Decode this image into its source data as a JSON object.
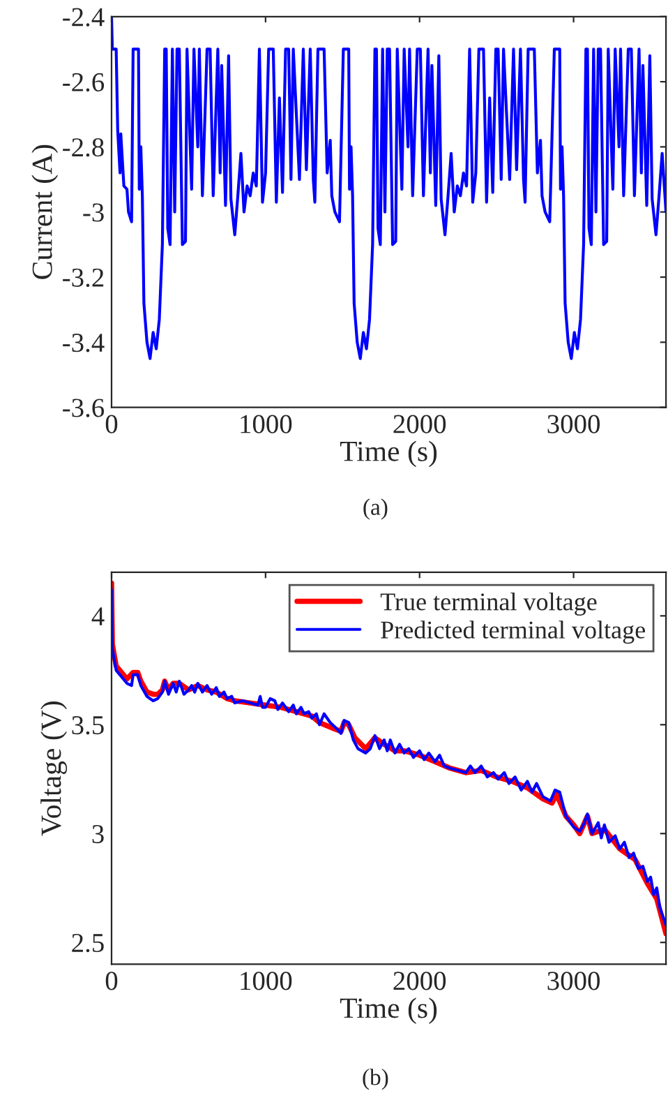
{
  "chart_data": [
    {
      "type": "line",
      "xlabel": "Time (s)",
      "ylabel": "Current (A)",
      "xlim": [
        0,
        3600
      ],
      "ylim": [
        -3.6,
        -2.4
      ],
      "xticks": [
        0,
        1000,
        2000,
        3000
      ],
      "yticks": [
        -3.6,
        -3.4,
        -3.2,
        -3,
        -2.8,
        -2.6,
        -2.4
      ],
      "grid": false,
      "legend": false,
      "annotations": [
        "(a)"
      ],
      "series": [
        {
          "color": "#0000ff",
          "x": [
            0,
            5,
            30,
            40,
            55,
            60,
            80,
            100,
            110,
            130,
            140,
            175,
            180,
            190,
            200,
            210,
            230,
            250,
            270,
            290,
            310,
            330,
            345,
            355,
            365,
            380,
            395,
            410,
            425,
            440,
            460,
            480,
            490,
            520,
            535,
            560,
            570,
            590,
            620,
            640,
            660,
            690,
            705,
            715,
            740,
            760,
            775,
            800,
            820,
            840,
            860,
            880,
            900,
            920,
            940,
            960,
            980,
            1000,
            1020,
            1050,
            1070,
            1090,
            1110,
            1130,
            1150,
            1165,
            1180,
            1200,
            1220,
            1245,
            1265,
            1290,
            1310,
            1320,
            1340,
            1380,
            1400,
            1420,
            1430,
            1450,
            1480,
            1505,
            1540,
            1545,
            1555,
            1565,
            1575,
            1595,
            1615,
            1635,
            1655,
            1675,
            1695,
            1710,
            1720,
            1730,
            1745,
            1760,
            1775,
            1790,
            1805,
            1825,
            1845,
            1855,
            1885,
            1900,
            1925,
            1935,
            1955,
            1985,
            2005,
            2025,
            2055,
            2070,
            2080,
            2105,
            2125,
            2140,
            2165,
            2185,
            2205,
            2225,
            2245,
            2265,
            2285,
            2305,
            2325,
            2345,
            2365,
            2385,
            2415,
            2435,
            2455,
            2475,
            2495,
            2510,
            2530,
            2545,
            2565,
            2585,
            2610,
            2630,
            2655,
            2675,
            2685,
            2705,
            2745,
            2765,
            2785,
            2795,
            2815,
            2845,
            2875,
            2910,
            2915,
            2925,
            2935,
            2945,
            2965,
            2985,
            3005,
            3025,
            3045,
            3065,
            3080,
            3090,
            3100,
            3115,
            3130,
            3145,
            3160,
            3175,
            3195,
            3215,
            3225,
            3255,
            3270,
            3295,
            3305,
            3325,
            3355,
            3375,
            3395,
            3425,
            3440,
            3450,
            3475,
            3495,
            3510,
            3535,
            3555,
            3575,
            3600
          ],
          "values": [
            -2.4,
            -2.5,
            -2.5,
            -2.75,
            -2.88,
            -2.76,
            -2.92,
            -2.93,
            -3.0,
            -3.03,
            -2.5,
            -2.5,
            -2.93,
            -2.8,
            -2.95,
            -3.28,
            -3.4,
            -3.45,
            -3.37,
            -3.42,
            -3.33,
            -3.1,
            -2.5,
            -2.5,
            -3.05,
            -3.1,
            -2.5,
            -3.0,
            -2.5,
            -2.5,
            -3.1,
            -3.09,
            -2.5,
            -2.93,
            -2.5,
            -2.8,
            -2.5,
            -2.95,
            -2.5,
            -2.5,
            -2.95,
            -2.5,
            -2.88,
            -2.55,
            -2.98,
            -2.52,
            -2.96,
            -3.07,
            -2.95,
            -2.82,
            -3.0,
            -2.92,
            -2.95,
            -2.88,
            -2.92,
            -2.5,
            -2.97,
            -2.88,
            -2.5,
            -2.5,
            -2.97,
            -2.65,
            -2.94,
            -2.5,
            -2.5,
            -2.9,
            -2.5,
            -2.7,
            -2.9,
            -2.5,
            -2.87,
            -2.5,
            -2.9,
            -2.97,
            -2.5,
            -2.5,
            -2.88,
            -2.78,
            -2.95,
            -3.0,
            -3.03,
            -2.5,
            -2.5,
            -2.93,
            -2.8,
            -2.95,
            -3.28,
            -3.4,
            -3.45,
            -3.37,
            -3.42,
            -3.33,
            -3.1,
            -2.5,
            -2.5,
            -3.05,
            -3.1,
            -2.5,
            -3.0,
            -2.5,
            -2.5,
            -3.1,
            -3.09,
            -2.5,
            -2.93,
            -2.5,
            -2.8,
            -2.5,
            -2.95,
            -2.5,
            -2.5,
            -2.95,
            -2.5,
            -2.88,
            -2.55,
            -2.98,
            -2.52,
            -2.96,
            -3.07,
            -2.95,
            -2.82,
            -3.0,
            -2.92,
            -2.95,
            -2.88,
            -2.92,
            -2.5,
            -2.97,
            -2.88,
            -2.5,
            -2.5,
            -2.97,
            -2.65,
            -2.94,
            -2.5,
            -2.5,
            -2.9,
            -2.5,
            -2.7,
            -2.9,
            -2.5,
            -2.87,
            -2.5,
            -2.9,
            -2.97,
            -2.5,
            -2.5,
            -2.88,
            -2.78,
            -2.95,
            -3.0,
            -3.03,
            -2.5,
            -2.5,
            -2.93,
            -2.8,
            -2.95,
            -3.28,
            -3.4,
            -3.45,
            -3.37,
            -3.42,
            -3.33,
            -3.1,
            -2.5,
            -2.5,
            -3.05,
            -3.1,
            -2.5,
            -3.0,
            -2.5,
            -2.5,
            -3.1,
            -3.09,
            -2.5,
            -2.93,
            -2.5,
            -2.8,
            -2.5,
            -2.95,
            -2.5,
            -2.5,
            -2.95,
            -2.5,
            -2.88,
            -2.55,
            -2.98,
            -2.52,
            -2.96,
            -3.07,
            -2.95,
            -2.82,
            -3.0
          ]
        }
      ]
    },
    {
      "type": "line",
      "xlabel": "Time (s)",
      "ylabel": "Voltage (V)",
      "xlim": [
        0,
        3600
      ],
      "ylim": [
        2.4,
        4.2
      ],
      "xticks": [
        0,
        1000,
        2000,
        3000
      ],
      "yticks": [
        2.5,
        3,
        3.5,
        4
      ],
      "grid": false,
      "legend": "top right",
      "annotations": [
        "(b)"
      ],
      "series": [
        {
          "name": "True terminal voltage",
          "color": "#ff0000",
          "x": [
            0,
            5,
            30,
            100,
            140,
            170,
            190,
            230,
            270,
            300,
            330,
            345,
            370,
            400,
            440,
            500,
            560,
            620,
            680,
            750,
            800,
            900,
            1000,
            1100,
            1200,
            1300,
            1350,
            1450,
            1490,
            1510,
            1540,
            1580,
            1650,
            1710,
            1770,
            1840,
            1900,
            2000,
            2100,
            2200,
            2300,
            2400,
            2500,
            2600,
            2700,
            2800,
            2860,
            2890,
            2950,
            3000,
            3040,
            3090,
            3120,
            3200,
            3300,
            3400,
            3480,
            3540,
            3600
          ],
          "values": [
            4.15,
            3.87,
            3.77,
            3.71,
            3.74,
            3.74,
            3.7,
            3.65,
            3.64,
            3.64,
            3.66,
            3.7,
            3.66,
            3.69,
            3.69,
            3.66,
            3.68,
            3.66,
            3.65,
            3.62,
            3.61,
            3.6,
            3.59,
            3.58,
            3.56,
            3.54,
            3.51,
            3.48,
            3.47,
            3.51,
            3.5,
            3.44,
            3.39,
            3.44,
            3.41,
            3.38,
            3.38,
            3.36,
            3.33,
            3.3,
            3.28,
            3.29,
            3.26,
            3.24,
            3.21,
            3.16,
            3.14,
            3.18,
            3.08,
            3.04,
            3.0,
            3.08,
            3.0,
            3.02,
            2.93,
            2.88,
            2.77,
            2.7,
            2.54
          ]
        },
        {
          "name": "Predicted terminal voltage",
          "color": "#0000ff",
          "x": [
            0,
            5,
            30,
            100,
            130,
            140,
            170,
            190,
            230,
            270,
            300,
            330,
            345,
            370,
            400,
            420,
            440,
            470,
            500,
            520,
            540,
            560,
            590,
            620,
            650,
            680,
            700,
            730,
            750,
            780,
            800,
            850,
            900,
            950,
            965,
            980,
            1000,
            1030,
            1060,
            1080,
            1110,
            1150,
            1180,
            1200,
            1230,
            1250,
            1280,
            1300,
            1330,
            1350,
            1380,
            1420,
            1450,
            1490,
            1510,
            1540,
            1570,
            1600,
            1650,
            1680,
            1710,
            1740,
            1770,
            1790,
            1810,
            1840,
            1870,
            1900,
            1930,
            1960,
            2000,
            2030,
            2060,
            2100,
            2130,
            2160,
            2200,
            2250,
            2300,
            2330,
            2360,
            2400,
            2440,
            2480,
            2510,
            2550,
            2580,
            2620,
            2660,
            2700,
            2730,
            2760,
            2800,
            2850,
            2880,
            2910,
            2950,
            3000,
            3040,
            3070,
            3090,
            3120,
            3160,
            3180,
            3200,
            3230,
            3270,
            3300,
            3330,
            3360,
            3390,
            3420,
            3450,
            3480,
            3500,
            3520,
            3540,
            3560,
            3600
          ],
          "values": [
            4.12,
            3.85,
            3.75,
            3.69,
            3.68,
            3.73,
            3.73,
            3.68,
            3.63,
            3.61,
            3.62,
            3.65,
            3.7,
            3.64,
            3.69,
            3.65,
            3.7,
            3.64,
            3.66,
            3.68,
            3.65,
            3.69,
            3.65,
            3.68,
            3.64,
            3.67,
            3.63,
            3.65,
            3.62,
            3.63,
            3.6,
            3.61,
            3.6,
            3.59,
            3.63,
            3.58,
            3.58,
            3.62,
            3.61,
            3.57,
            3.6,
            3.56,
            3.59,
            3.55,
            3.58,
            3.55,
            3.56,
            3.53,
            3.55,
            3.5,
            3.55,
            3.51,
            3.49,
            3.46,
            3.52,
            3.51,
            3.43,
            3.39,
            3.37,
            3.39,
            3.45,
            3.39,
            3.43,
            3.38,
            3.43,
            3.37,
            3.41,
            3.37,
            3.39,
            3.35,
            3.38,
            3.34,
            3.37,
            3.33,
            3.36,
            3.31,
            3.3,
            3.29,
            3.28,
            3.31,
            3.28,
            3.31,
            3.26,
            3.28,
            3.25,
            3.28,
            3.23,
            3.26,
            3.2,
            3.24,
            3.19,
            3.23,
            3.17,
            3.15,
            3.2,
            3.19,
            3.08,
            3.03,
            3.01,
            3.05,
            3.09,
            3.0,
            3.05,
            2.98,
            3.04,
            2.96,
            2.99,
            2.93,
            2.96,
            2.89,
            2.91,
            2.84,
            2.85,
            2.78,
            2.8,
            2.72,
            2.75,
            2.66,
            2.58
          ]
        }
      ]
    }
  ]
}
